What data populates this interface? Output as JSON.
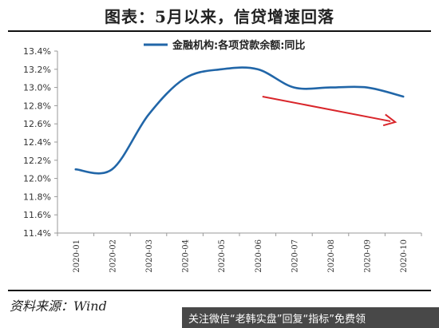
{
  "header": {
    "title": "图表：5月以来，信贷增速回落"
  },
  "source_note": "资料来源：Wind",
  "watermark": "关注微信“老韩实盘”回复“指标”免费领",
  "colors": {
    "line": "#2166a8",
    "arrow": "#d9252a",
    "axis": "#999999",
    "grid": "#ffffff"
  },
  "chart_data": {
    "type": "line",
    "title": "",
    "xlabel": "",
    "ylabel": "",
    "categories": [
      "2020-01",
      "2020-02",
      "2020-03",
      "2020-04",
      "2020-05",
      "2020-06",
      "2020-07",
      "2020-08",
      "2020-09",
      "2020-10"
    ],
    "series": [
      {
        "name": "金融机构:各项贷款余额:同比",
        "values": [
          12.1,
          12.1,
          12.7,
          13.1,
          13.2,
          13.2,
          13.0,
          13.0,
          13.0,
          12.9
        ]
      }
    ],
    "ylim": [
      11.4,
      13.4
    ],
    "yticks": [
      11.4,
      11.6,
      11.8,
      12.0,
      12.2,
      12.4,
      12.6,
      12.8,
      13.0,
      13.2,
      13.4
    ],
    "ytick_labels": [
      "11.4%",
      "11.6%",
      "11.8%",
      "12.0%",
      "12.2%",
      "12.4%",
      "12.6%",
      "12.8%",
      "13.0%",
      "13.2%",
      "13.4%"
    ],
    "legend_position": "top",
    "grid": false,
    "annotation": {
      "type": "trend-arrow",
      "from": {
        "x": "2020-06",
        "y": 12.9
      },
      "to": {
        "x": "2020-10",
        "y": 12.62
      }
    }
  }
}
